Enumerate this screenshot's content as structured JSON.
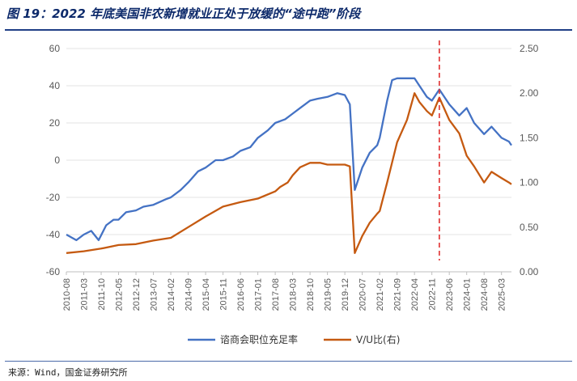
{
  "title": "图 19：2022 年底美国非农新增就业正处于放缓的“途中跑”阶段",
  "source": "来源：Wind，国金证券研究所",
  "chart_data": {
    "type": "line",
    "title": "图 19：2022 年底美国非农新增就业正处于放缓的“途中跑”阶段",
    "x_ticks": [
      "2010-08",
      "2011-03",
      "2011-10",
      "2012-05",
      "2012-12",
      "2013-07",
      "2014-02",
      "2014-09",
      "2015-04",
      "2015-11",
      "2016-06",
      "2017-01",
      "2017-08",
      "2018-03",
      "2018-10",
      "2019-05",
      "2019-12",
      "2020-07",
      "2021-02",
      "2021-09",
      "2022-04",
      "2022-11",
      "2023-06",
      "2024-01",
      "2024-08",
      "2025-03"
    ],
    "y_left": {
      "min": -60,
      "max": 60,
      "ticks": [
        "60",
        "40",
        "20",
        "0",
        "-20",
        "-40",
        "-60"
      ]
    },
    "y_right": {
      "min": 0,
      "max": 2.5,
      "ticks": [
        "2.50",
        "2.00",
        "1.50",
        "1.00",
        "0.50",
        "0.00"
      ]
    },
    "reference_line": {
      "date": "2023-02",
      "color": "#e03030",
      "style": "dashed"
    },
    "legend_position": "bottom",
    "series": [
      {
        "name": "谘商会职位充足率",
        "axis": "left",
        "color": "#4472c4",
        "points": [
          [
            "2010-08",
            -40
          ],
          [
            "2010-12",
            -43
          ],
          [
            "2011-03",
            -40
          ],
          [
            "2011-06",
            -38
          ],
          [
            "2011-09",
            -43
          ],
          [
            "2011-12",
            -35
          ],
          [
            "2012-03",
            -32
          ],
          [
            "2012-05",
            -32
          ],
          [
            "2012-08",
            -28
          ],
          [
            "2012-12",
            -27
          ],
          [
            "2013-03",
            -25
          ],
          [
            "2013-07",
            -24
          ],
          [
            "2013-12",
            -21
          ],
          [
            "2014-02",
            -20
          ],
          [
            "2014-06",
            -16
          ],
          [
            "2014-09",
            -12
          ],
          [
            "2015-01",
            -6
          ],
          [
            "2015-04",
            -4
          ],
          [
            "2015-08",
            0
          ],
          [
            "2015-11",
            0
          ],
          [
            "2016-03",
            2
          ],
          [
            "2016-06",
            5
          ],
          [
            "2016-10",
            7
          ],
          [
            "2017-01",
            12
          ],
          [
            "2017-05",
            16
          ],
          [
            "2017-08",
            20
          ],
          [
            "2017-12",
            22
          ],
          [
            "2018-03",
            25
          ],
          [
            "2018-06",
            28
          ],
          [
            "2018-10",
            32
          ],
          [
            "2019-01",
            33
          ],
          [
            "2019-05",
            34
          ],
          [
            "2019-09",
            36
          ],
          [
            "2019-12",
            35
          ],
          [
            "2020-02",
            30
          ],
          [
            "2020-04",
            -16
          ],
          [
            "2020-07",
            -4
          ],
          [
            "2020-10",
            4
          ],
          [
            "2021-01",
            8
          ],
          [
            "2021-02",
            12
          ],
          [
            "2021-05",
            32
          ],
          [
            "2021-07",
            43
          ],
          [
            "2021-09",
            44
          ],
          [
            "2022-01",
            44
          ],
          [
            "2022-04",
            44
          ],
          [
            "2022-06",
            40
          ],
          [
            "2022-09",
            34
          ],
          [
            "2022-11",
            32
          ],
          [
            "2023-02",
            38
          ],
          [
            "2023-06",
            30
          ],
          [
            "2023-10",
            24
          ],
          [
            "2024-01",
            28
          ],
          [
            "2024-04",
            20
          ],
          [
            "2024-08",
            14
          ],
          [
            "2024-11",
            18
          ],
          [
            "2025-03",
            12
          ],
          [
            "2025-06",
            10
          ],
          [
            "2025-07",
            8
          ]
        ]
      },
      {
        "name": "V/U比(右)",
        "axis": "right",
        "color": "#c55a11",
        "points": [
          [
            "2010-08",
            0.21
          ],
          [
            "2011-03",
            0.23
          ],
          [
            "2011-10",
            0.26
          ],
          [
            "2012-05",
            0.3
          ],
          [
            "2012-12",
            0.31
          ],
          [
            "2013-07",
            0.35
          ],
          [
            "2014-02",
            0.38
          ],
          [
            "2014-09",
            0.5
          ],
          [
            "2015-04",
            0.62
          ],
          [
            "2015-11",
            0.73
          ],
          [
            "2016-06",
            0.78
          ],
          [
            "2017-01",
            0.82
          ],
          [
            "2017-08",
            0.9
          ],
          [
            "2017-10",
            0.95
          ],
          [
            "2018-01",
            1.0
          ],
          [
            "2018-03",
            1.08
          ],
          [
            "2018-06",
            1.17
          ],
          [
            "2018-10",
            1.22
          ],
          [
            "2019-02",
            1.22
          ],
          [
            "2019-05",
            1.2
          ],
          [
            "2019-09",
            1.2
          ],
          [
            "2019-12",
            1.2
          ],
          [
            "2020-02",
            1.18
          ],
          [
            "2020-04",
            0.21
          ],
          [
            "2020-07",
            0.4
          ],
          [
            "2020-10",
            0.55
          ],
          [
            "2021-01",
            0.65
          ],
          [
            "2021-02",
            0.68
          ],
          [
            "2021-05",
            1.0
          ],
          [
            "2021-09",
            1.45
          ],
          [
            "2022-01",
            1.7
          ],
          [
            "2022-04",
            2.0
          ],
          [
            "2022-06",
            1.9
          ],
          [
            "2022-09",
            1.8
          ],
          [
            "2022-11",
            1.75
          ],
          [
            "2023-02",
            1.95
          ],
          [
            "2023-06",
            1.7
          ],
          [
            "2023-10",
            1.55
          ],
          [
            "2024-01",
            1.3
          ],
          [
            "2024-04",
            1.18
          ],
          [
            "2024-08",
            1.0
          ],
          [
            "2024-11",
            1.12
          ],
          [
            "2025-03",
            1.05
          ],
          [
            "2025-06",
            1.0
          ],
          [
            "2025-07",
            0.98
          ]
        ]
      }
    ]
  }
}
